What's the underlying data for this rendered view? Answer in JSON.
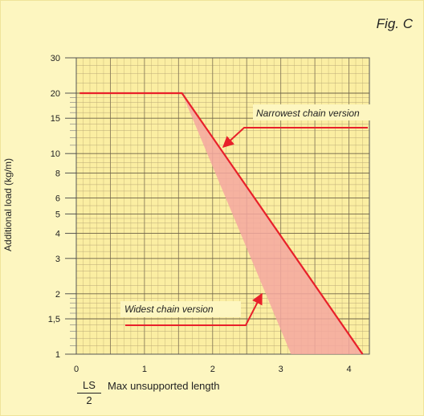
{
  "figure_label": "Fig. C",
  "chart_data": {
    "type": "line",
    "ylabel": "Additional load (kg/m)",
    "xlabel_fraction": {
      "numerator": "LS",
      "denominator": "2"
    },
    "xlabel": "Max unsupported length",
    "xlim": [
      0,
      4.3
    ],
    "ylim": [
      1,
      30
    ],
    "y_scale": "log",
    "grid": true,
    "x_ticks": [
      0,
      1,
      2,
      3,
      4
    ],
    "x_tick_labels": [
      "0",
      "1",
      "2",
      "3",
      "4"
    ],
    "y_ticks": [
      1,
      1.5,
      2,
      3,
      4,
      5,
      6,
      8,
      10,
      15,
      20,
      30
    ],
    "y_tick_labels": [
      "1",
      "1,5",
      "2",
      "3",
      "4",
      "5",
      "6",
      "8",
      "10",
      "15",
      "20",
      "30"
    ],
    "series": [
      {
        "name": "Narrowest chain version",
        "color": "#e8202a",
        "points": [
          [
            0.05,
            20
          ],
          [
            1.55,
            20
          ],
          [
            4.2,
            1
          ]
        ]
      },
      {
        "name": "Widest chain version",
        "color": "#f4a7a0",
        "points": [
          [
            0.05,
            20
          ],
          [
            1.55,
            20
          ],
          [
            3.15,
            1
          ]
        ]
      }
    ],
    "annotations": [
      {
        "text": "Narrowest chain version"
      },
      {
        "text": "Widest chain version"
      }
    ]
  }
}
